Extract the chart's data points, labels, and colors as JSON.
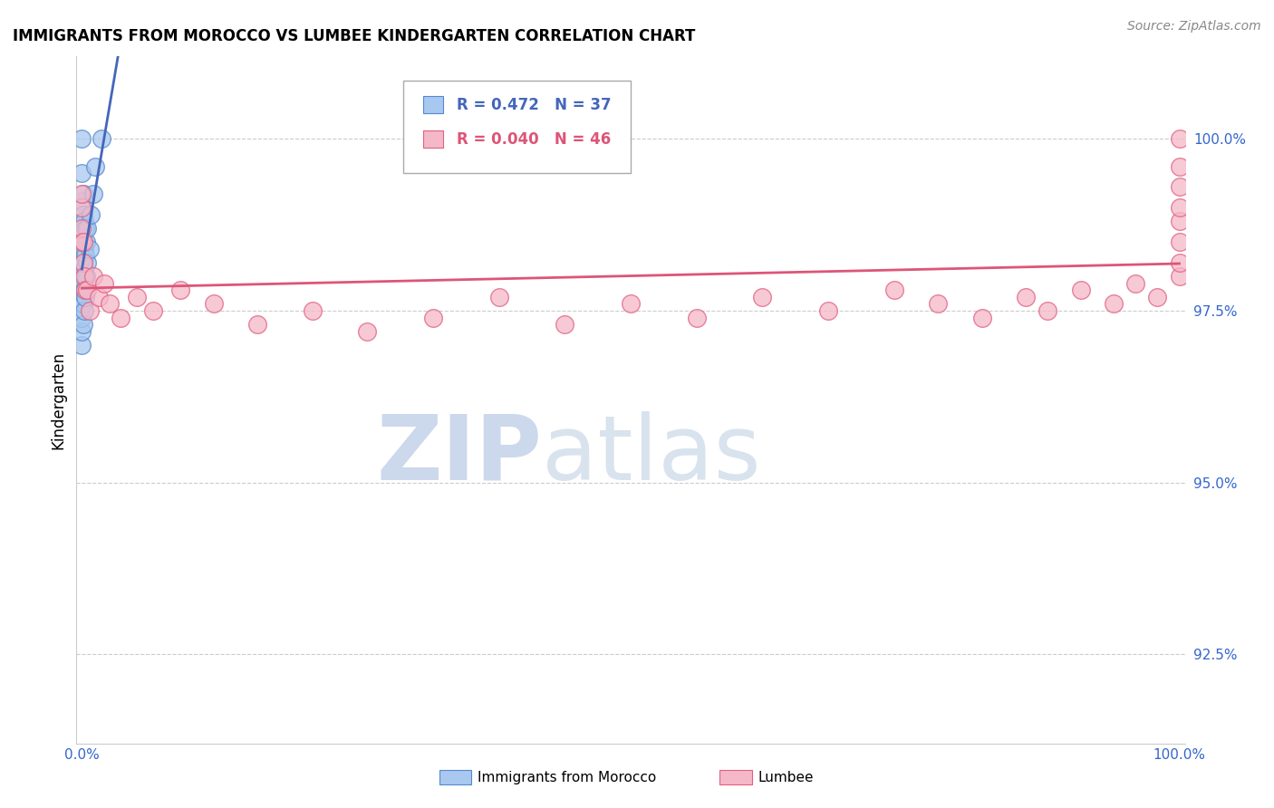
{
  "title": "IMMIGRANTS FROM MOROCCO VS LUMBEE KINDERGARTEN CORRELATION CHART",
  "source": "Source: ZipAtlas.com",
  "ylabel": "Kindergarten",
  "y_ticks": [
    92.5,
    95.0,
    97.5,
    100.0
  ],
  "legend_blue_r": "0.472",
  "legend_blue_n": "37",
  "legend_pink_r": "0.040",
  "legend_pink_n": "46",
  "legend_blue_label": "Immigrants from Morocco",
  "legend_pink_label": "Lumbee",
  "blue_color": "#a8c8f0",
  "blue_edge": "#5588cc",
  "pink_color": "#f5b8c8",
  "pink_edge": "#e06080",
  "trendline_blue": "#4466bb",
  "trendline_pink": "#dd5577",
  "blue_x": [
    0.0,
    0.0,
    0.0,
    0.0,
    0.0,
    0.0,
    0.0,
    0.0,
    0.0,
    0.0,
    0.0,
    0.0,
    0.001,
    0.001,
    0.001,
    0.001,
    0.001,
    0.001,
    0.001,
    0.002,
    0.002,
    0.002,
    0.002,
    0.002,
    0.003,
    0.003,
    0.003,
    0.003,
    0.004,
    0.004,
    0.005,
    0.005,
    0.007,
    0.008,
    0.01,
    0.012,
    0.018
  ],
  "blue_y": [
    97.0,
    97.2,
    97.4,
    97.6,
    97.8,
    98.0,
    98.2,
    98.5,
    98.8,
    99.1,
    99.5,
    100.0,
    97.3,
    97.6,
    97.9,
    98.2,
    98.5,
    98.9,
    99.2,
    97.5,
    97.8,
    98.1,
    98.4,
    98.8,
    97.7,
    98.0,
    98.3,
    98.7,
    98.0,
    98.5,
    98.2,
    98.7,
    98.4,
    98.9,
    99.2,
    99.6,
    100.0
  ],
  "pink_x": [
    0.0,
    0.0,
    0.0,
    0.0,
    0.001,
    0.001,
    0.002,
    0.003,
    0.005,
    0.007,
    0.01,
    0.015,
    0.02,
    0.025,
    0.035,
    0.05,
    0.065,
    0.09,
    0.12,
    0.16,
    0.21,
    0.26,
    0.32,
    0.38,
    0.44,
    0.5,
    0.56,
    0.62,
    0.68,
    0.74,
    0.78,
    0.82,
    0.86,
    0.88,
    0.91,
    0.94,
    0.96,
    0.98,
    1.0,
    1.0,
    1.0,
    1.0,
    1.0,
    1.0,
    1.0,
    1.0
  ],
  "pink_y": [
    98.5,
    98.7,
    99.0,
    99.2,
    98.2,
    98.5,
    98.0,
    97.8,
    97.8,
    97.5,
    98.0,
    97.7,
    97.9,
    97.6,
    97.4,
    97.7,
    97.5,
    97.8,
    97.6,
    97.3,
    97.5,
    97.2,
    97.4,
    97.7,
    97.3,
    97.6,
    97.4,
    97.7,
    97.5,
    97.8,
    97.6,
    97.4,
    97.7,
    97.5,
    97.8,
    97.6,
    97.9,
    97.7,
    98.0,
    98.2,
    98.5,
    98.8,
    99.0,
    99.3,
    99.6,
    100.0
  ]
}
